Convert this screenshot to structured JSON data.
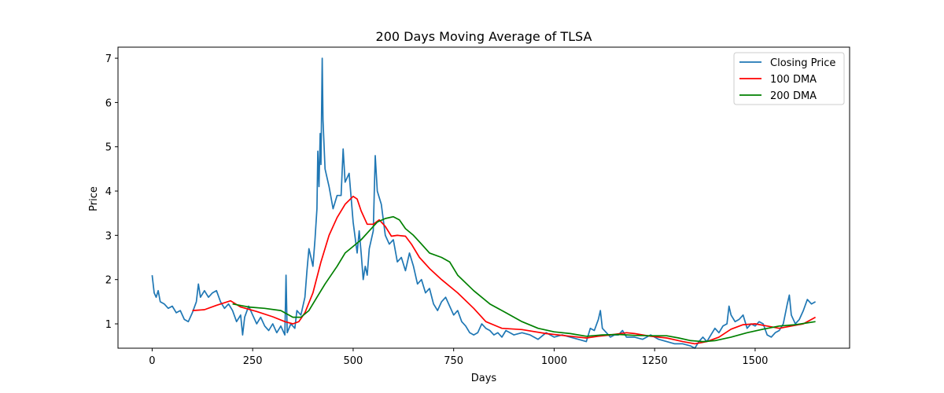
{
  "chart_data": {
    "type": "line",
    "title": "200 Days Moving Average of TLSA",
    "xlabel": "Days",
    "ylabel": "Price",
    "xlim": [
      -85,
      1735
    ],
    "ylim": [
      0.45,
      7.25
    ],
    "xticks": [
      0,
      250,
      500,
      750,
      1000,
      1250,
      1500
    ],
    "yticks": [
      1,
      2,
      3,
      4,
      5,
      6,
      7
    ],
    "grid": false,
    "legend": "top-right",
    "series": [
      {
        "name": "Closing Price",
        "color": "#1f77b4",
        "points": [
          [
            0,
            2.1
          ],
          [
            5,
            1.7
          ],
          [
            10,
            1.6
          ],
          [
            15,
            1.75
          ],
          [
            20,
            1.5
          ],
          [
            30,
            1.45
          ],
          [
            40,
            1.35
          ],
          [
            50,
            1.4
          ],
          [
            60,
            1.25
          ],
          [
            70,
            1.3
          ],
          [
            80,
            1.1
          ],
          [
            90,
            1.05
          ],
          [
            100,
            1.25
          ],
          [
            110,
            1.5
          ],
          [
            115,
            1.9
          ],
          [
            120,
            1.6
          ],
          [
            130,
            1.75
          ],
          [
            140,
            1.6
          ],
          [
            150,
            1.7
          ],
          [
            160,
            1.75
          ],
          [
            170,
            1.5
          ],
          [
            180,
            1.35
          ],
          [
            190,
            1.45
          ],
          [
            200,
            1.3
          ],
          [
            210,
            1.05
          ],
          [
            220,
            1.2
          ],
          [
            225,
            0.75
          ],
          [
            230,
            1.15
          ],
          [
            240,
            1.4
          ],
          [
            250,
            1.2
          ],
          [
            260,
            1.0
          ],
          [
            270,
            1.15
          ],
          [
            280,
            0.95
          ],
          [
            290,
            0.85
          ],
          [
            300,
            1.0
          ],
          [
            310,
            0.8
          ],
          [
            320,
            0.95
          ],
          [
            330,
            0.75
          ],
          [
            333,
            2.1
          ],
          [
            336,
            0.8
          ],
          [
            345,
            1.0
          ],
          [
            355,
            0.9
          ],
          [
            360,
            1.3
          ],
          [
            370,
            1.2
          ],
          [
            380,
            1.6
          ],
          [
            385,
            2.2
          ],
          [
            390,
            2.7
          ],
          [
            395,
            2.5
          ],
          [
            400,
            2.3
          ],
          [
            405,
            2.9
          ],
          [
            410,
            3.6
          ],
          [
            412,
            4.9
          ],
          [
            415,
            4.1
          ],
          [
            418,
            5.3
          ],
          [
            420,
            4.6
          ],
          [
            423,
            7.0
          ],
          [
            425,
            5.6
          ],
          [
            430,
            4.5
          ],
          [
            440,
            4.1
          ],
          [
            450,
            3.6
          ],
          [
            460,
            3.9
          ],
          [
            470,
            3.9
          ],
          [
            475,
            4.95
          ],
          [
            480,
            4.2
          ],
          [
            490,
            4.4
          ],
          [
            500,
            3.3
          ],
          [
            510,
            2.6
          ],
          [
            515,
            3.1
          ],
          [
            520,
            2.6
          ],
          [
            525,
            2.0
          ],
          [
            530,
            2.3
          ],
          [
            535,
            2.1
          ],
          [
            540,
            2.7
          ],
          [
            550,
            3.1
          ],
          [
            555,
            4.8
          ],
          [
            560,
            4.0
          ],
          [
            570,
            3.7
          ],
          [
            580,
            3.0
          ],
          [
            590,
            2.8
          ],
          [
            600,
            2.9
          ],
          [
            610,
            2.4
          ],
          [
            620,
            2.5
          ],
          [
            630,
            2.2
          ],
          [
            640,
            2.6
          ],
          [
            650,
            2.3
          ],
          [
            660,
            1.9
          ],
          [
            670,
            2.0
          ],
          [
            680,
            1.7
          ],
          [
            690,
            1.8
          ],
          [
            700,
            1.45
          ],
          [
            710,
            1.3
          ],
          [
            720,
            1.5
          ],
          [
            730,
            1.6
          ],
          [
            740,
            1.4
          ],
          [
            750,
            1.2
          ],
          [
            760,
            1.3
          ],
          [
            770,
            1.05
          ],
          [
            780,
            0.95
          ],
          [
            790,
            0.8
          ],
          [
            800,
            0.75
          ],
          [
            810,
            0.8
          ],
          [
            820,
            1.0
          ],
          [
            830,
            0.9
          ],
          [
            840,
            0.85
          ],
          [
            850,
            0.75
          ],
          [
            860,
            0.8
          ],
          [
            870,
            0.7
          ],
          [
            880,
            0.85
          ],
          [
            890,
            0.8
          ],
          [
            900,
            0.75
          ],
          [
            920,
            0.8
          ],
          [
            940,
            0.75
          ],
          [
            960,
            0.65
          ],
          [
            980,
            0.8
          ],
          [
            1000,
            0.7
          ],
          [
            1020,
            0.75
          ],
          [
            1040,
            0.7
          ],
          [
            1060,
            0.65
          ],
          [
            1080,
            0.6
          ],
          [
            1090,
            0.9
          ],
          [
            1100,
            0.85
          ],
          [
            1110,
            1.1
          ],
          [
            1115,
            1.3
          ],
          [
            1120,
            0.9
          ],
          [
            1130,
            0.8
          ],
          [
            1140,
            0.7
          ],
          [
            1150,
            0.75
          ],
          [
            1160,
            0.75
          ],
          [
            1170,
            0.85
          ],
          [
            1180,
            0.7
          ],
          [
            1200,
            0.7
          ],
          [
            1220,
            0.65
          ],
          [
            1240,
            0.75
          ],
          [
            1260,
            0.65
          ],
          [
            1280,
            0.6
          ],
          [
            1300,
            0.55
          ],
          [
            1320,
            0.55
          ],
          [
            1340,
            0.5
          ],
          [
            1350,
            0.45
          ],
          [
            1360,
            0.6
          ],
          [
            1370,
            0.7
          ],
          [
            1380,
            0.6
          ],
          [
            1390,
            0.75
          ],
          [
            1400,
            0.9
          ],
          [
            1410,
            0.8
          ],
          [
            1420,
            0.95
          ],
          [
            1430,
            1.0
          ],
          [
            1435,
            1.4
          ],
          [
            1440,
            1.2
          ],
          [
            1450,
            1.05
          ],
          [
            1460,
            1.1
          ],
          [
            1470,
            1.2
          ],
          [
            1480,
            0.9
          ],
          [
            1490,
            1.0
          ],
          [
            1500,
            0.95
          ],
          [
            1510,
            1.05
          ],
          [
            1520,
            1.0
          ],
          [
            1530,
            0.75
          ],
          [
            1540,
            0.7
          ],
          [
            1550,
            0.8
          ],
          [
            1560,
            0.85
          ],
          [
            1570,
            1.0
          ],
          [
            1580,
            1.45
          ],
          [
            1585,
            1.65
          ],
          [
            1590,
            1.2
          ],
          [
            1600,
            1.0
          ],
          [
            1610,
            1.1
          ],
          [
            1620,
            1.3
          ],
          [
            1630,
            1.55
          ],
          [
            1640,
            1.45
          ],
          [
            1650,
            1.5
          ]
        ]
      },
      {
        "name": "100 DMA",
        "color": "#ff0000",
        "points": [
          [
            100,
            1.3
          ],
          [
            130,
            1.32
          ],
          [
            160,
            1.42
          ],
          [
            195,
            1.52
          ],
          [
            220,
            1.38
          ],
          [
            260,
            1.28
          ],
          [
            300,
            1.16
          ],
          [
            330,
            1.05
          ],
          [
            350,
            1.0
          ],
          [
            365,
            1.05
          ],
          [
            380,
            1.25
          ],
          [
            400,
            1.7
          ],
          [
            420,
            2.4
          ],
          [
            440,
            3.0
          ],
          [
            460,
            3.4
          ],
          [
            480,
            3.7
          ],
          [
            500,
            3.88
          ],
          [
            510,
            3.82
          ],
          [
            520,
            3.55
          ],
          [
            535,
            3.25
          ],
          [
            550,
            3.25
          ],
          [
            565,
            3.35
          ],
          [
            580,
            3.2
          ],
          [
            595,
            2.98
          ],
          [
            610,
            3.0
          ],
          [
            630,
            2.98
          ],
          [
            645,
            2.8
          ],
          [
            665,
            2.5
          ],
          [
            690,
            2.25
          ],
          [
            720,
            2.0
          ],
          [
            760,
            1.7
          ],
          [
            800,
            1.35
          ],
          [
            830,
            1.05
          ],
          [
            870,
            0.9
          ],
          [
            920,
            0.87
          ],
          [
            980,
            0.78
          ],
          [
            1040,
            0.72
          ],
          [
            1080,
            0.68
          ],
          [
            1110,
            0.72
          ],
          [
            1140,
            0.75
          ],
          [
            1180,
            0.8
          ],
          [
            1200,
            0.78
          ],
          [
            1240,
            0.72
          ],
          [
            1280,
            0.68
          ],
          [
            1320,
            0.6
          ],
          [
            1350,
            0.55
          ],
          [
            1380,
            0.6
          ],
          [
            1410,
            0.7
          ],
          [
            1440,
            0.88
          ],
          [
            1470,
            0.98
          ],
          [
            1500,
            1.0
          ],
          [
            1530,
            0.95
          ],
          [
            1560,
            0.9
          ],
          [
            1590,
            0.95
          ],
          [
            1620,
            1.0
          ],
          [
            1650,
            1.15
          ]
        ]
      },
      {
        "name": "200 DMA",
        "color": "#008000",
        "points": [
          [
            200,
            1.45
          ],
          [
            240,
            1.38
          ],
          [
            280,
            1.35
          ],
          [
            320,
            1.3
          ],
          [
            350,
            1.15
          ],
          [
            370,
            1.15
          ],
          [
            390,
            1.3
          ],
          [
            410,
            1.6
          ],
          [
            430,
            1.9
          ],
          [
            460,
            2.3
          ],
          [
            480,
            2.6
          ],
          [
            500,
            2.75
          ],
          [
            520,
            2.9
          ],
          [
            540,
            3.1
          ],
          [
            560,
            3.3
          ],
          [
            580,
            3.38
          ],
          [
            600,
            3.42
          ],
          [
            615,
            3.35
          ],
          [
            630,
            3.15
          ],
          [
            650,
            3.0
          ],
          [
            670,
            2.8
          ],
          [
            690,
            2.6
          ],
          [
            720,
            2.5
          ],
          [
            740,
            2.4
          ],
          [
            760,
            2.1
          ],
          [
            800,
            1.75
          ],
          [
            840,
            1.45
          ],
          [
            880,
            1.25
          ],
          [
            920,
            1.05
          ],
          [
            960,
            0.9
          ],
          [
            1000,
            0.82
          ],
          [
            1040,
            0.78
          ],
          [
            1080,
            0.72
          ],
          [
            1120,
            0.75
          ],
          [
            1160,
            0.76
          ],
          [
            1200,
            0.74
          ],
          [
            1240,
            0.73
          ],
          [
            1280,
            0.73
          ],
          [
            1310,
            0.68
          ],
          [
            1340,
            0.62
          ],
          [
            1370,
            0.6
          ],
          [
            1400,
            0.62
          ],
          [
            1440,
            0.7
          ],
          [
            1480,
            0.8
          ],
          [
            1520,
            0.88
          ],
          [
            1560,
            0.95
          ],
          [
            1600,
            0.98
          ],
          [
            1650,
            1.05
          ]
        ]
      }
    ]
  }
}
